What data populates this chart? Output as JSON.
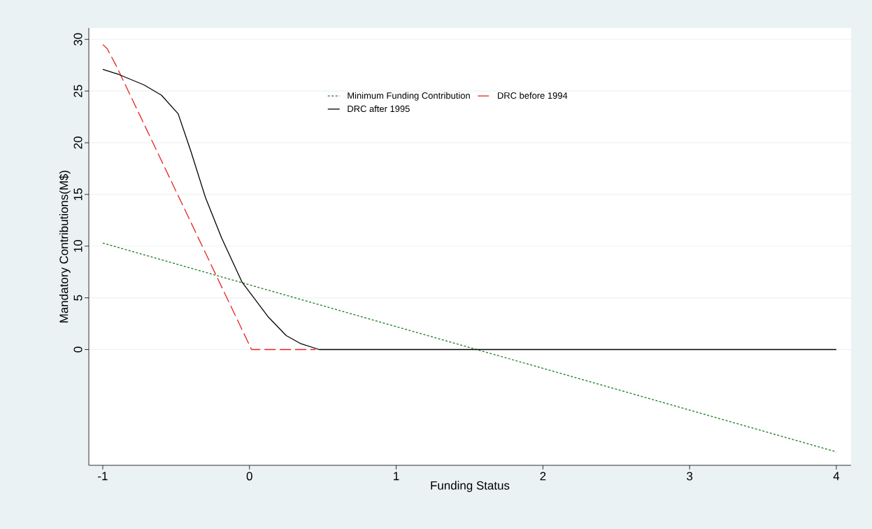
{
  "chart_data": {
    "type": "line",
    "xlabel": "Funding Status",
    "ylabel": "Mandatory Contributions(M$)",
    "xlim": [
      -1.095,
      4.1
    ],
    "ylim": [
      -11.2,
      31.1
    ],
    "xticks": [
      -1,
      0,
      1,
      2,
      3,
      4
    ],
    "yticks": [
      0,
      5,
      10,
      15,
      20,
      25,
      30
    ],
    "grid": "y",
    "legend": "top right",
    "series": [
      {
        "name": "Minimum Funding Contribution",
        "color": "#1a7a1a",
        "line_style": "dotted",
        "x": [
          -1,
          4
        ],
        "values": [
          10.3,
          -9.9
        ]
      },
      {
        "name": "DRC before 1994",
        "color": "#e8211e",
        "line_style": "dashed",
        "x": [
          -1,
          -0.97,
          -0.91,
          0.014,
          0.45
        ],
        "values": [
          29.5,
          29.1,
          27.5,
          0,
          0
        ]
      },
      {
        "name": "DRC after 1995",
        "color": "#000000",
        "line_style": "solid",
        "x": [
          -1,
          -0.89,
          -0.72,
          -0.6,
          -0.486,
          -0.4,
          -0.3,
          -0.19,
          -0.05,
          0.03,
          0.125,
          0.25,
          0.35,
          0.475,
          4
        ],
        "values": [
          27.1,
          26.6,
          25.6,
          24.6,
          22.8,
          19.2,
          14.7,
          10.8,
          6.5,
          5.0,
          3.2,
          1.35,
          0.56,
          0,
          0
        ]
      }
    ]
  }
}
